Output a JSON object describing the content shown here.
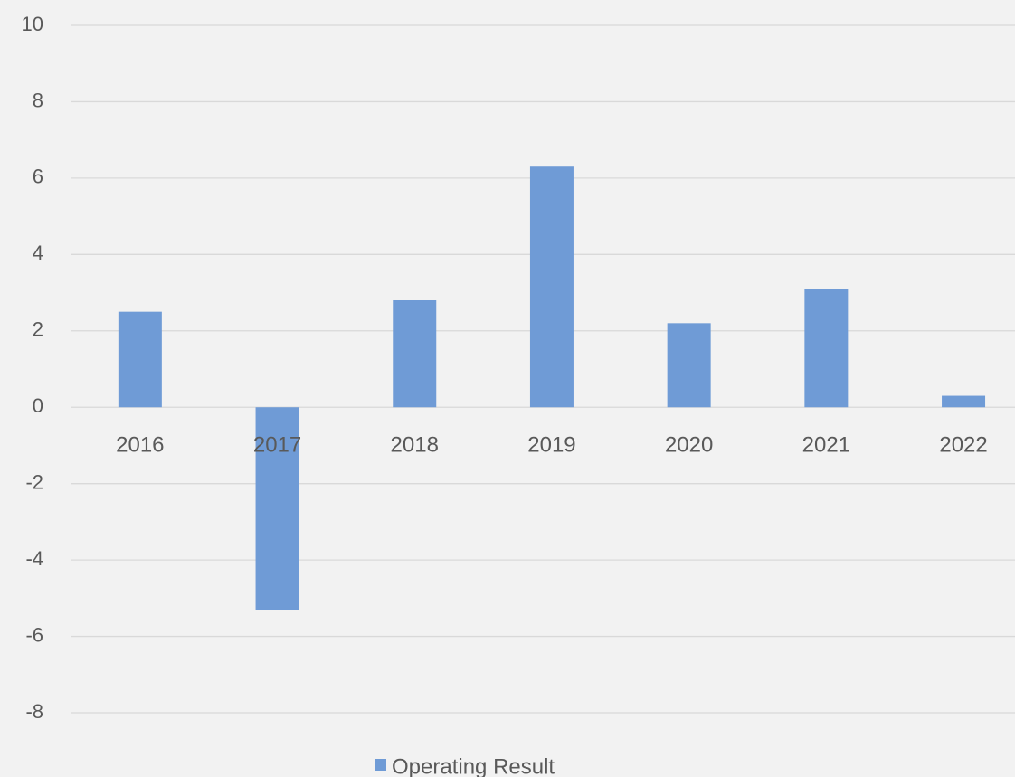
{
  "chart_data": {
    "type": "bar",
    "categories": [
      "2016",
      "2017",
      "2018",
      "2019",
      "2020",
      "2021",
      "2022"
    ],
    "series": [
      {
        "name": "Operating Result",
        "color": "#6f9bd6",
        "values": [
          2.5,
          -5.3,
          2.8,
          6.3,
          2.2,
          3.1,
          0.3
        ]
      }
    ],
    "ylim": [
      -8,
      10
    ],
    "yticks": [
      -8,
      -6,
      -4,
      -2,
      0,
      2,
      4,
      6,
      8,
      10
    ],
    "grid": true,
    "legend": "bottom"
  }
}
